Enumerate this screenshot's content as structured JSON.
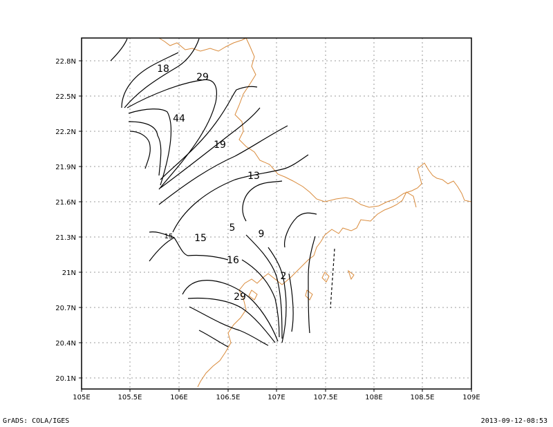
{
  "footer": {
    "credit": "GrADS: COLA/IGES",
    "timestamp": "2013-09-12-08:53"
  },
  "map": {
    "x_axis_ticks": [
      "105E",
      "105.5E",
      "106E",
      "106.5E",
      "107E",
      "107.5E",
      "108E",
      "108.5E",
      "109E"
    ],
    "y_axis_ticks": [
      "20.1N",
      "20.4N",
      "20.7N",
      "21N",
      "21.3N",
      "21.6N",
      "21.9N",
      "22.2N",
      "22.5N",
      "22.8N"
    ],
    "contour_labels": [
      "18",
      "29",
      "44",
      "19",
      "13",
      "5",
      "9",
      "15",
      "15",
      "16",
      "2",
      "29"
    ],
    "coastline_color": "#d98a3a",
    "contour_color": "#000000",
    "grid_style": "dotted",
    "grid": true
  }
}
